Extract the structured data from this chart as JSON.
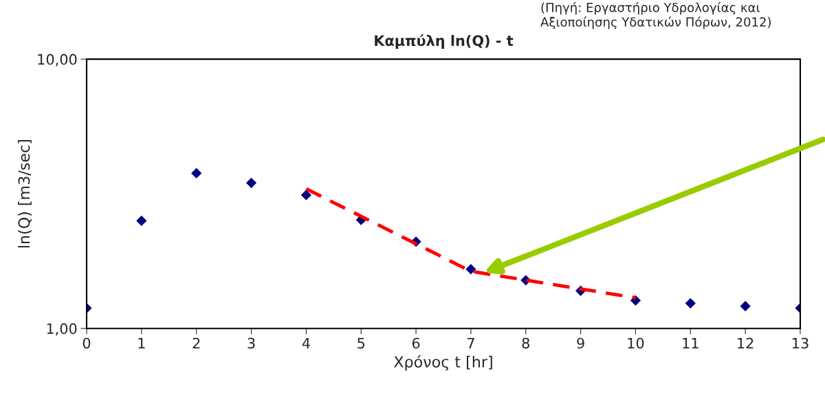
{
  "chart_data": {
    "type": "scatter",
    "title": "Καμπύλη ln(Q) - t",
    "xlabel": "Χρόνος t [hr]",
    "ylabel": "ln(Q) [m3/sec]",
    "x": [
      0,
      1,
      2,
      3,
      4,
      5,
      6,
      7,
      8,
      9,
      10,
      11,
      12,
      13
    ],
    "series": [
      {
        "color": "#000080",
        "marker": "diamond",
        "values": [
          1.19,
          2.51,
          3.77,
          3.47,
          3.13,
          2.53,
          2.1,
          1.66,
          1.51,
          1.38,
          1.27,
          1.24,
          1.21,
          1.19
        ]
      },
      {
        "type": "line",
        "color": "#ff0000",
        "line_style": "dashed",
        "marker": "none",
        "x": [
          4,
          7,
          10
        ],
        "values": [
          3.3,
          1.63,
          1.3
        ]
      }
    ],
    "log": "y",
    "xlim": [
      0,
      13
    ],
    "ylim": [
      1,
      10
    ],
    "xticks": [
      0,
      1,
      2,
      3,
      4,
      5,
      6,
      7,
      8,
      9,
      10,
      11,
      12,
      13
    ],
    "yticks": [
      {
        "value": 1,
        "label": "1,00"
      },
      {
        "value": 10,
        "label": "10,00"
      }
    ],
    "grid": false,
    "legend": false,
    "annotations": [
      "(Πηγή: Εργαστήριο Υδρολογίας και Αξιοποίησης Υδατικών Πόρων, 2012)"
    ]
  }
}
